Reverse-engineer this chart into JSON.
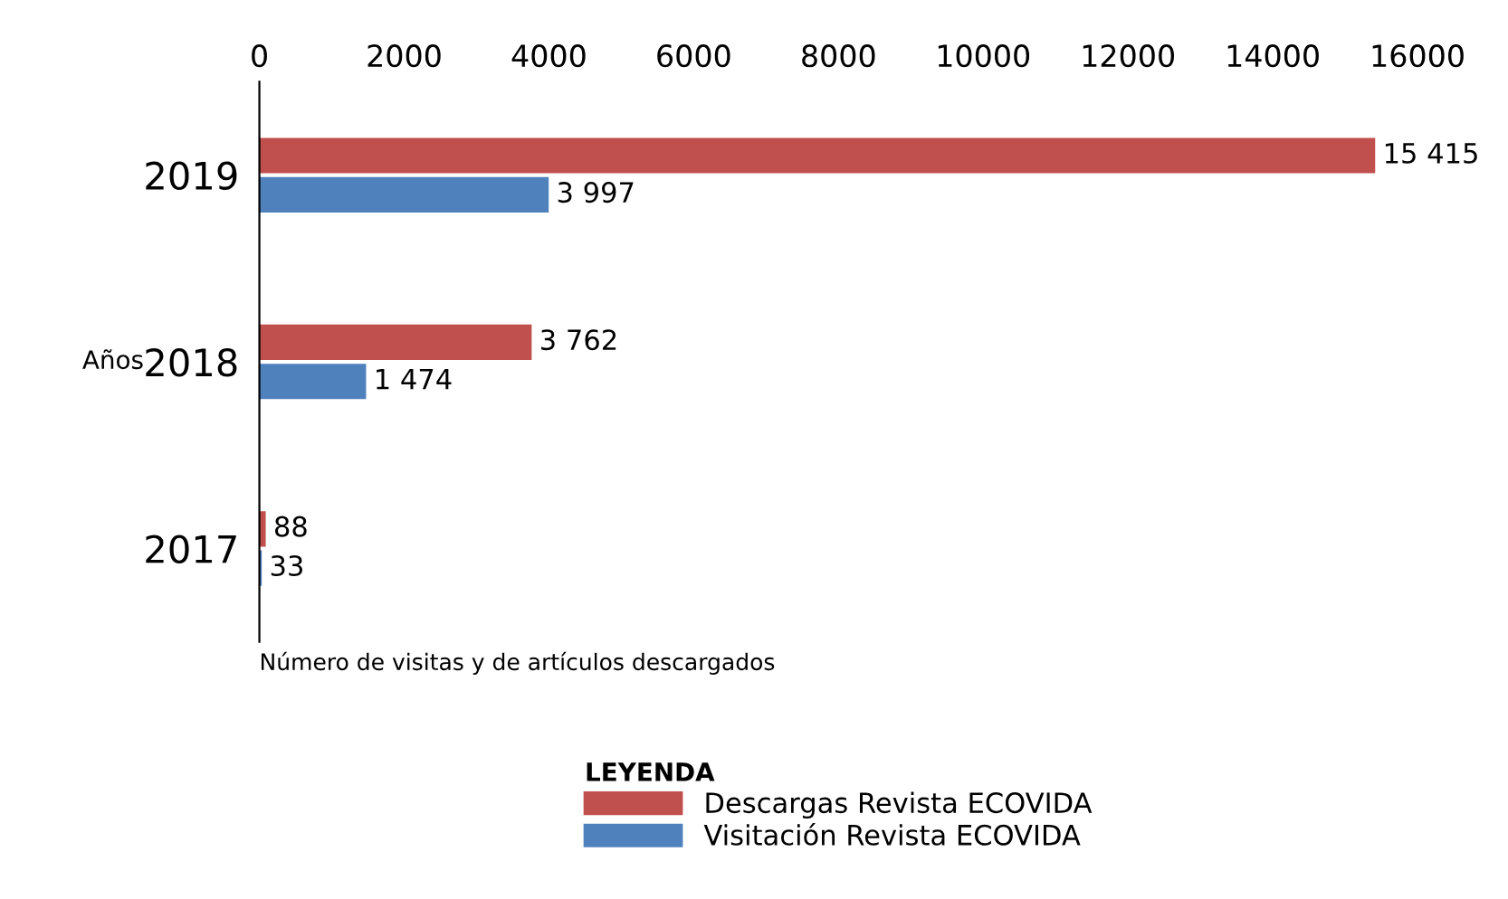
{
  "chart_data": {
    "type": "bar",
    "orientation": "horizontal",
    "categories": [
      "2019",
      "2018",
      "2017"
    ],
    "series": [
      {
        "name": "Descargas Revista ECOVIDA",
        "color": "#c0504d",
        "values": [
          15415,
          3762,
          88
        ],
        "value_labels": [
          "15 415",
          "3 762",
          "88"
        ]
      },
      {
        "name": "Visitación Revista ECOVIDA",
        "color": "#4f81bd",
        "values": [
          3997,
          1474,
          33
        ],
        "value_labels": [
          "3 997",
          "1 474",
          "33"
        ]
      }
    ],
    "xlim": [
      0,
      16000
    ],
    "xticks": [
      0,
      2000,
      4000,
      6000,
      8000,
      10000,
      12000,
      14000,
      16000
    ],
    "xlabel": "Número de visitas y de artículos descargados",
    "ylabel": "Años",
    "legend": "bottom",
    "legend_title": "LEYENDA",
    "grid": false
  }
}
